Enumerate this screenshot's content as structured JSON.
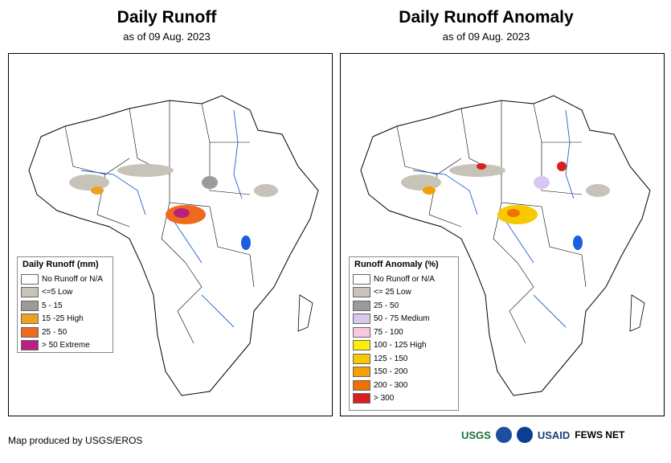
{
  "panels": [
    {
      "title": "Daily Runoff",
      "subtitle": "as of 09 Aug. 2023",
      "legend": {
        "title": "Daily Runoff (mm)",
        "items": [
          {
            "label": "No Runoff or N/A",
            "color": "#ffffff"
          },
          {
            "label": "<=5 Low",
            "color": "#c8c3b8"
          },
          {
            "label": "5 - 15",
            "color": "#9b9b9b"
          },
          {
            "label": "15 -25 High",
            "color": "#f0a020"
          },
          {
            "label": "25 - 50",
            "color": "#f06a1e"
          },
          {
            "label": "> 50 Extreme",
            "color": "#b8227e"
          }
        ]
      }
    },
    {
      "title": "Daily Runoff Anomaly",
      "subtitle": "as of 09 Aug. 2023",
      "legend": {
        "title": "Runoff Anomaly (%)",
        "items": [
          {
            "label": "No Runoff or N/A",
            "color": "#ffffff"
          },
          {
            "label": "<= 25 Low",
            "color": "#c8c3b8"
          },
          {
            "label": "25 - 50",
            "color": "#9b9b9b"
          },
          {
            "label": "50 - 75 Medium",
            "color": "#d8c8f0"
          },
          {
            "label": "75 - 100",
            "color": "#f8c8e0"
          },
          {
            "label": "100 - 125 High",
            "color": "#ffee00"
          },
          {
            "label": "125 - 150",
            "color": "#f8c800"
          },
          {
            "label": "150 - 200",
            "color": "#f5a000"
          },
          {
            "label": "200 - 300",
            "color": "#f07000"
          },
          {
            "label": "> 300",
            "color": "#d82020"
          }
        ]
      }
    }
  ],
  "footer": "Map produced by USGS/EROS",
  "logos": [
    "USGS",
    "NOAA",
    "NASA",
    "USAID",
    "FEWS NET"
  ],
  "colors": {
    "river": "#2060d0",
    "lake": "#1a5fe0",
    "border": "#000000"
  }
}
